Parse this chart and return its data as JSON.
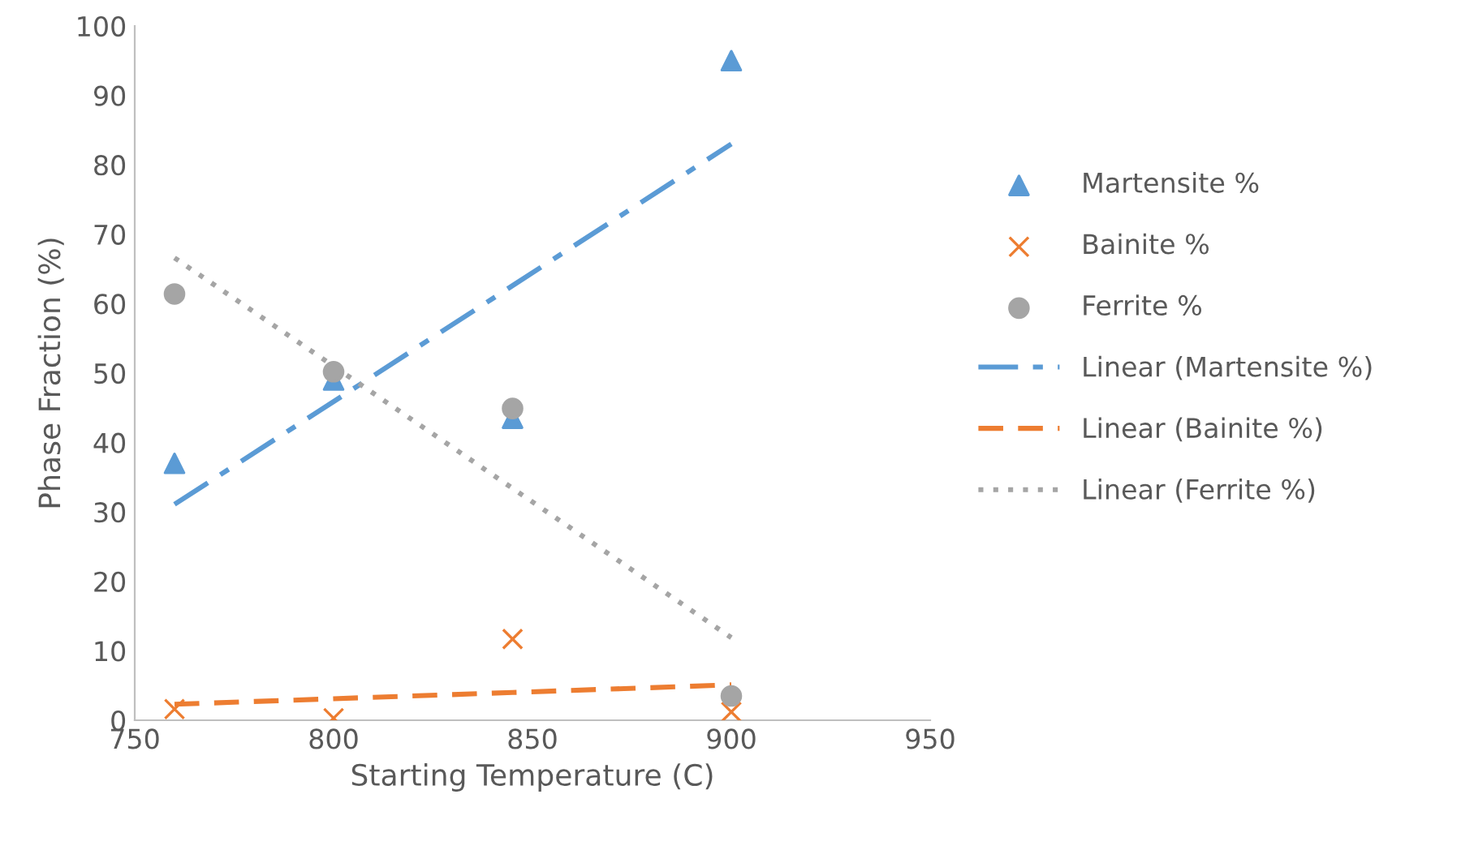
{
  "chart_data": {
    "type": "scatter",
    "xlabel": "Starting Temperature (C)",
    "ylabel": "Phase Fraction (%)",
    "x": [
      760,
      800,
      845,
      900
    ],
    "series": [
      {
        "name": "Martensite %",
        "color": "#5b9bd5",
        "marker": "triangle",
        "values": [
          37,
          49,
          43.5,
          95
        ]
      },
      {
        "name": "Bainite %",
        "color": "#ed7d31",
        "marker": "cross",
        "values": [
          1.6,
          0.3,
          11.7,
          1.2
        ]
      },
      {
        "name": "Ferrite %",
        "color": "#a5a5a5",
        "marker": "circle",
        "values": [
          61.4,
          50.2,
          44.9,
          3.5
        ]
      },
      {
        "name": "Linear (Martensite %)",
        "type": "line",
        "color": "#5b9bd5",
        "line_style": "dashdot",
        "values": [
          31.1,
          45.9,
          62.6,
          83
        ]
      },
      {
        "name": "Linear (Bainite %)",
        "type": "line",
        "color": "#ed7d31",
        "line_style": "dashed",
        "values": [
          2.3,
          3.1,
          4.0,
          5.1
        ]
      },
      {
        "name": "Linear (Ferrite %)",
        "type": "line",
        "color": "#a5a5a5",
        "line_style": "dotted",
        "values": [
          66.6,
          51.0,
          33.4,
          11.9
        ]
      }
    ],
    "xlim": [
      750,
      950
    ],
    "xticks": [
      750,
      800,
      850,
      900,
      950
    ],
    "ylim": [
      0,
      100
    ],
    "yticks": [
      0,
      10,
      20,
      30,
      40,
      50,
      60,
      70,
      80,
      90,
      100
    ],
    "grid": false,
    "legend": "right"
  }
}
